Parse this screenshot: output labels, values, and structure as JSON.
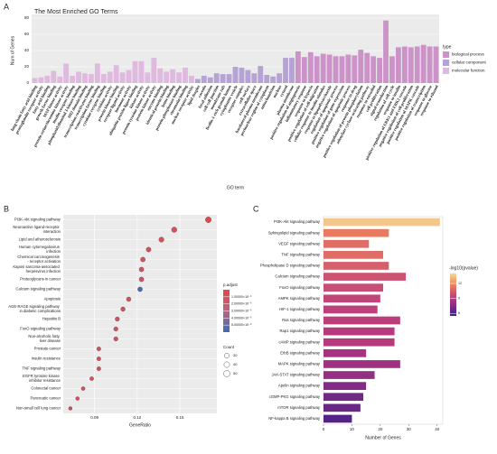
{
  "chart_data": [
    {
      "type": "bar",
      "panel": "A",
      "title": "The Most Enriched GO Terms",
      "xlabel": "GO term",
      "ylabel": "Num of Genes",
      "legend_title": "type",
      "categories": [
        "long-chain fatty acid binding",
        "prostaglandin receptor activity",
        "fatty acid binding",
        "growth factor binding",
        "MAP kinase activity",
        "protein serine/threonine kinase activity",
        "insulin receptor binding",
        "phosphatidylinositol 3-kinase binding",
        "SH2 domain binding",
        "transcription coactivator binding",
        "transcription factor binding",
        "cytokine receptor binding",
        "cytokine activity",
        "protein kinase binding",
        "receptor ligand activity",
        "hormone activity",
        "ubiquitin protein ligase binding",
        "kinase activity",
        "protein tyrosine kinase activity",
        "protein kinase activity",
        "enzyme binding",
        "identical protein binding",
        "heme binding",
        "protein phosphatase binding",
        "chromatin binding",
        "nuclear receptor activity",
        "lipid droplet",
        "caveola",
        "focal adhesion",
        "cell-cell junction",
        "membrane raft",
        "ficolin-1-rich granule lumen",
        "cytoplasmic vesicle",
        "receptor complex",
        "cell surface",
        "extracellular space",
        "basolateral plasma membrane",
        "perinuclear region of cytoplasm",
        "mitochondrion",
        "nucleus",
        "cytosol",
        "plasma membrane",
        "positive regulation of angiogenesis",
        "inflammatory response",
        "response to hypoxia",
        "positive regulation of cell migration",
        "cellular response to insulin stimulus",
        "response to lipopolysaccharide",
        "regulation of apoptotic process",
        "positive regulation of gene expression",
        "negative regulation of apoptotic process",
        "response to drug",
        "positive regulation of protein phosphorylation",
        "adenylate cyclase-activating pathway",
        "response to estradiol",
        "cell proliferation",
        "signal transduction",
        "regulation of cell cycle",
        "response to insulin",
        "positive regulation of ERK1 and ERK2 cascade",
        "negative regulation of cell proliferation",
        "positive regulation of MAPK cascade",
        "positive regulation of transcription",
        "response to glucose",
        "response to ethanol"
      ],
      "series": [
        {
          "name": "biological process",
          "color": "#cc93c9",
          "values": [
            null,
            null,
            null,
            null,
            null,
            null,
            null,
            null,
            null,
            null,
            null,
            null,
            null,
            null,
            null,
            null,
            null,
            null,
            null,
            null,
            null,
            null,
            null,
            null,
            null,
            null,
            null,
            null,
            null,
            null,
            null,
            null,
            null,
            null,
            null,
            null,
            null,
            null,
            null,
            null,
            null,
            null,
            39,
            32,
            38,
            33,
            36,
            35,
            33,
            33,
            35,
            34,
            41,
            37,
            33,
            31,
            77,
            33,
            44,
            45,
            44,
            45,
            47,
            45,
            45
          ]
        },
        {
          "name": "cellular component",
          "color": "#b5a3d6",
          "values": [
            null,
            null,
            null,
            null,
            null,
            null,
            null,
            null,
            null,
            null,
            null,
            null,
            null,
            null,
            null,
            null,
            null,
            null,
            null,
            null,
            null,
            null,
            null,
            null,
            null,
            null,
            5,
            9,
            7,
            12,
            11,
            11,
            20,
            19,
            16,
            12,
            21,
            10,
            8,
            12,
            31,
            31,
            null,
            null,
            null,
            null,
            null,
            null,
            null,
            null,
            null,
            null,
            null,
            null,
            null,
            null,
            null,
            null,
            null,
            null,
            null,
            null,
            null,
            null,
            null
          ]
        },
        {
          "name": "molecular function",
          "color": "#dfbade",
          "values": [
            6,
            7,
            9,
            15,
            8,
            24,
            9,
            14,
            12,
            11,
            24,
            11,
            14,
            22,
            13,
            16,
            27,
            27,
            13,
            31,
            18,
            14,
            17,
            13,
            19,
            9,
            null,
            null,
            null,
            null,
            null,
            null,
            null,
            null,
            null,
            null,
            null,
            null,
            null,
            null,
            null,
            null,
            null,
            null,
            null,
            null,
            null,
            null,
            null,
            null,
            null,
            null,
            null,
            null,
            null,
            null,
            null,
            null,
            null,
            null,
            null,
            null,
            null,
            null,
            null
          ]
        }
      ],
      "ylim": [
        0,
        80
      ],
      "yticks": [
        0,
        20,
        40,
        60,
        80
      ],
      "grid": true
    },
    {
      "type": "dot",
      "panel": "B",
      "xlabel": "GeneRatio",
      "color_title": "p.adjust",
      "size_title": "Count",
      "categories": [
        "PI3K-Akt signaling pathway",
        "Neuroactive ligand-receptor interaction",
        "Lipid and atherosclerosis",
        "Human cytomegalovirus infection",
        "Chemical carcinogenesis - receptor activation",
        "Kaposi sarcoma-associated herpesvirus infection",
        "Proteoglycans in cancer",
        "Calcium signaling pathway",
        "Apoptosis",
        "AGE-RAGE signaling pathway in diabetic complications",
        "Hepatitis B",
        "FoxO signaling pathway",
        "Non-alcoholic fatty liver disease",
        "Prostate cancer",
        "Insulin resistance",
        "TNF signaling pathway",
        "EGFR tyrosine kinase inhibitor resistance",
        "Colorectal cancer",
        "Pancreatic cancer",
        "Non-small cell lung cancer"
      ],
      "values": [
        0.17,
        0.146,
        0.137,
        0.128,
        0.124,
        0.123,
        0.123,
        0.122,
        0.114,
        0.11,
        0.106,
        0.105,
        0.105,
        0.093,
        0.093,
        0.093,
        0.088,
        0.082,
        0.078,
        0.073
      ],
      "counts": [
        41,
        35,
        32,
        29,
        28,
        27,
        27,
        27,
        25,
        24,
        23,
        23,
        23,
        20,
        20,
        20,
        19,
        18,
        17,
        16
      ],
      "p_adjust": [
        1e-07,
        1.2e-06,
        1e-06,
        1.1e-06,
        1.3e-06,
        1.5e-06,
        1.4e-06,
        5.6e-06,
        1.2e-06,
        1.3e-06,
        1.4e-06,
        1.2e-06,
        1.3e-06,
        1e-06,
        1.1e-06,
        1e-06,
        1.2e-06,
        1.3e-06,
        1.1e-06,
        1.2e-06
      ],
      "xlim": [
        0.068,
        0.176
      ],
      "xticks": [
        0.09,
        0.12,
        0.15
      ],
      "clim": [
        0,
        6e-06
      ],
      "cticks": [
        {
          "value": 5e-06,
          "label": "5.00000×10⁻⁶"
        },
        {
          "value": 4e-06,
          "label": "4.00000×10⁻⁶"
        },
        {
          "value": 3e-06,
          "label": "3.00000×10⁻⁶"
        },
        {
          "value": 2e-06,
          "label": "2.00000×10⁻⁶"
        },
        {
          "value": 1e-06,
          "label": "1.00000×10⁻⁶"
        }
      ],
      "size_ticks": [
        30,
        40,
        50
      ],
      "grid": true
    },
    {
      "type": "bar",
      "horizontal": true,
      "panel": "C",
      "xlabel": "Number of Genes",
      "color_title": "-log10(pvalue)",
      "categories": [
        "PI3K-Akt signaling pathway",
        "Sphingolipid signaling pathway",
        "VEGF signaling pathway",
        "TNF signaling pathway",
        "Phospholipase D signaling pathway",
        "Calcium signaling pathway",
        "FoxO signaling pathway",
        "AMPK signaling pathway",
        "HIF-1 signaling pathway",
        "Ras signaling pathway",
        "Rap1 signaling pathway",
        "cAMP signaling pathway",
        "ErbB signaling pathway",
        "MAPK signaling pathway",
        "JAK-STAT signaling pathway",
        "Apelin signaling pathway",
        "cGMP-PKG signaling pathway",
        "mTOR signaling pathway",
        "NF-kappa B signaling pathway"
      ],
      "values": [
        41,
        23,
        16,
        21,
        23,
        29,
        21,
        20,
        19,
        27,
        25,
        25,
        15,
        27,
        18,
        15,
        14,
        13,
        10
      ],
      "neg_log10_p": [
        13.5,
        11.5,
        11,
        11,
        10.5,
        10,
        9.8,
        9.5,
        9.3,
        9.2,
        9,
        9,
        8.5,
        8.3,
        8,
        7.5,
        7,
        6.8,
        6.2
      ],
      "xlim": [
        0,
        42
      ],
      "xticks": [
        0,
        10,
        20,
        30,
        40
      ],
      "clim": [
        5.5,
        14
      ],
      "cticks": [
        12,
        9,
        6
      ]
    }
  ]
}
